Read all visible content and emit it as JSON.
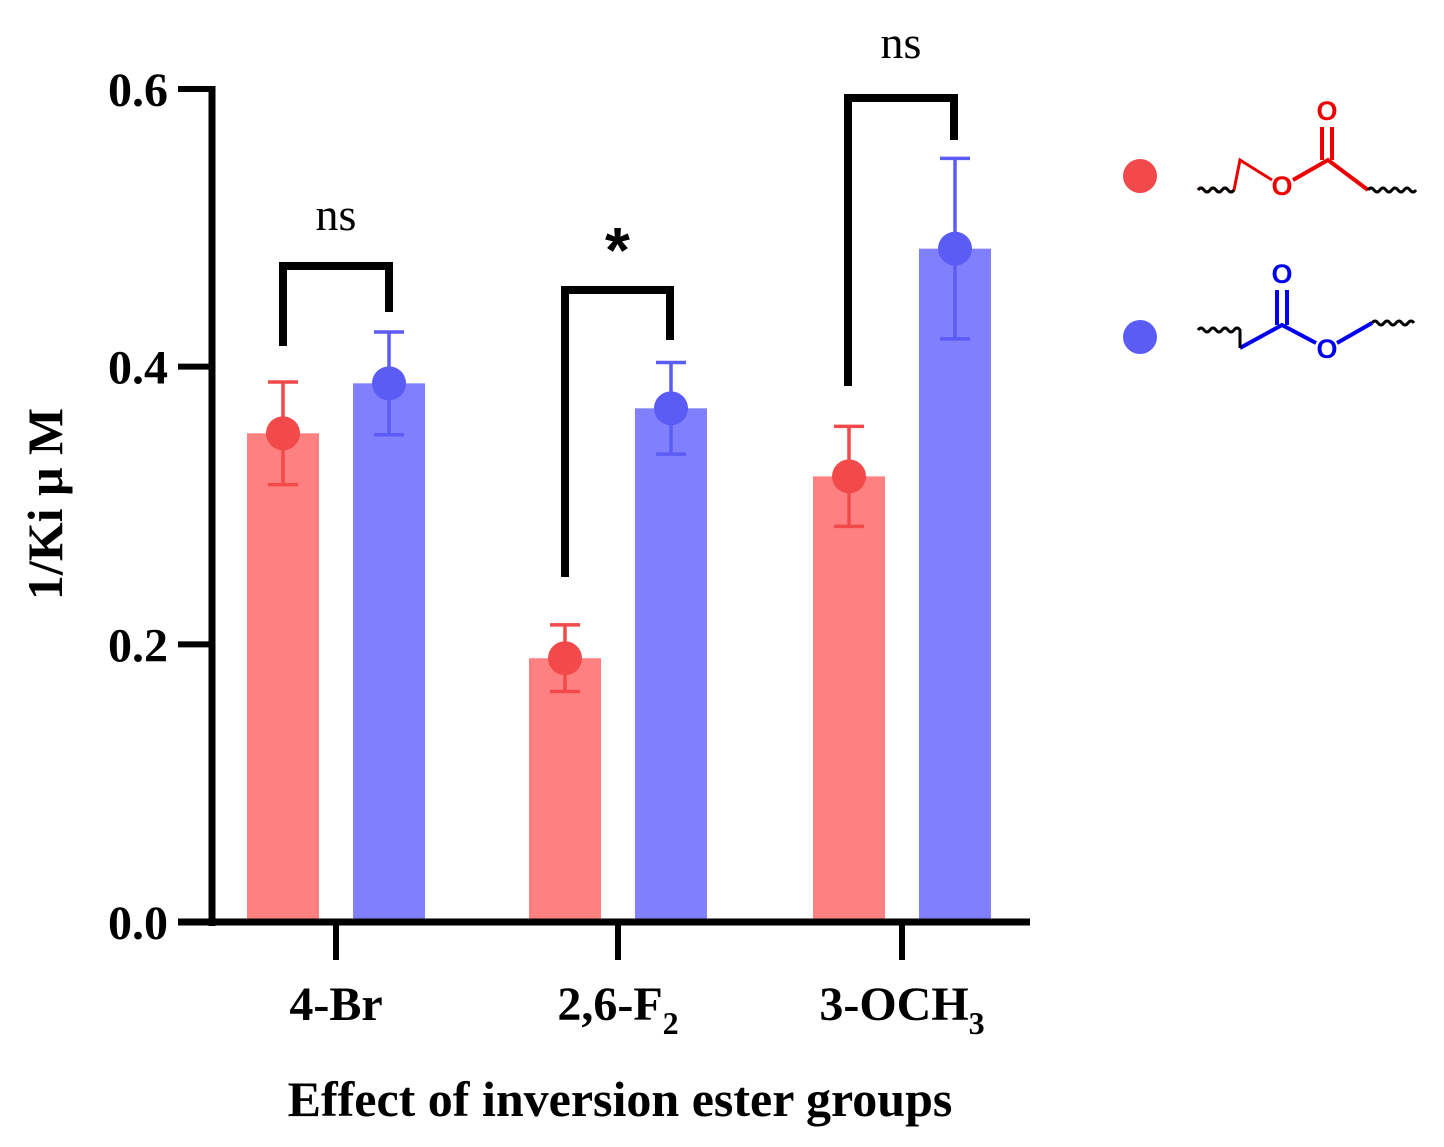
{
  "chart_data": {
    "type": "bar",
    "title": "",
    "xlabel": "Effect of inversion ester groups",
    "ylabel": "1/Ki μ M",
    "ylim": [
      0,
      0.6
    ],
    "yticks": [
      "0.0",
      "0.2",
      "0.4",
      "0.6"
    ],
    "categories": [
      {
        "main": "4-Br",
        "sub": "",
        "tail": ""
      },
      {
        "main": "2,6-F",
        "sub": "2",
        "tail": ""
      },
      {
        "main": "3-OCH",
        "sub": "3",
        "tail": ""
      }
    ],
    "series": [
      {
        "name": "ester (O–C(=O) orientation)",
        "bar_color": "#ff8080",
        "point_color": "#f24a4a",
        "values": [
          0.352,
          0.19,
          0.321
        ],
        "errors": [
          0.037,
          0.024,
          0.036
        ]
      },
      {
        "name": "inverted ester (C(=O)–O orientation)",
        "bar_color": "#8080ff",
        "point_color": "#5b5bf5",
        "values": [
          0.388,
          0.37,
          0.485
        ],
        "errors": [
          0.037,
          0.033,
          0.065
        ]
      }
    ],
    "significance": [
      {
        "label": "ns",
        "bold": false
      },
      {
        "label": "*",
        "bold": true
      },
      {
        "label": "ns",
        "bold": false
      }
    ],
    "legend_position": "top-right",
    "legend_structure_atom": "O"
  }
}
